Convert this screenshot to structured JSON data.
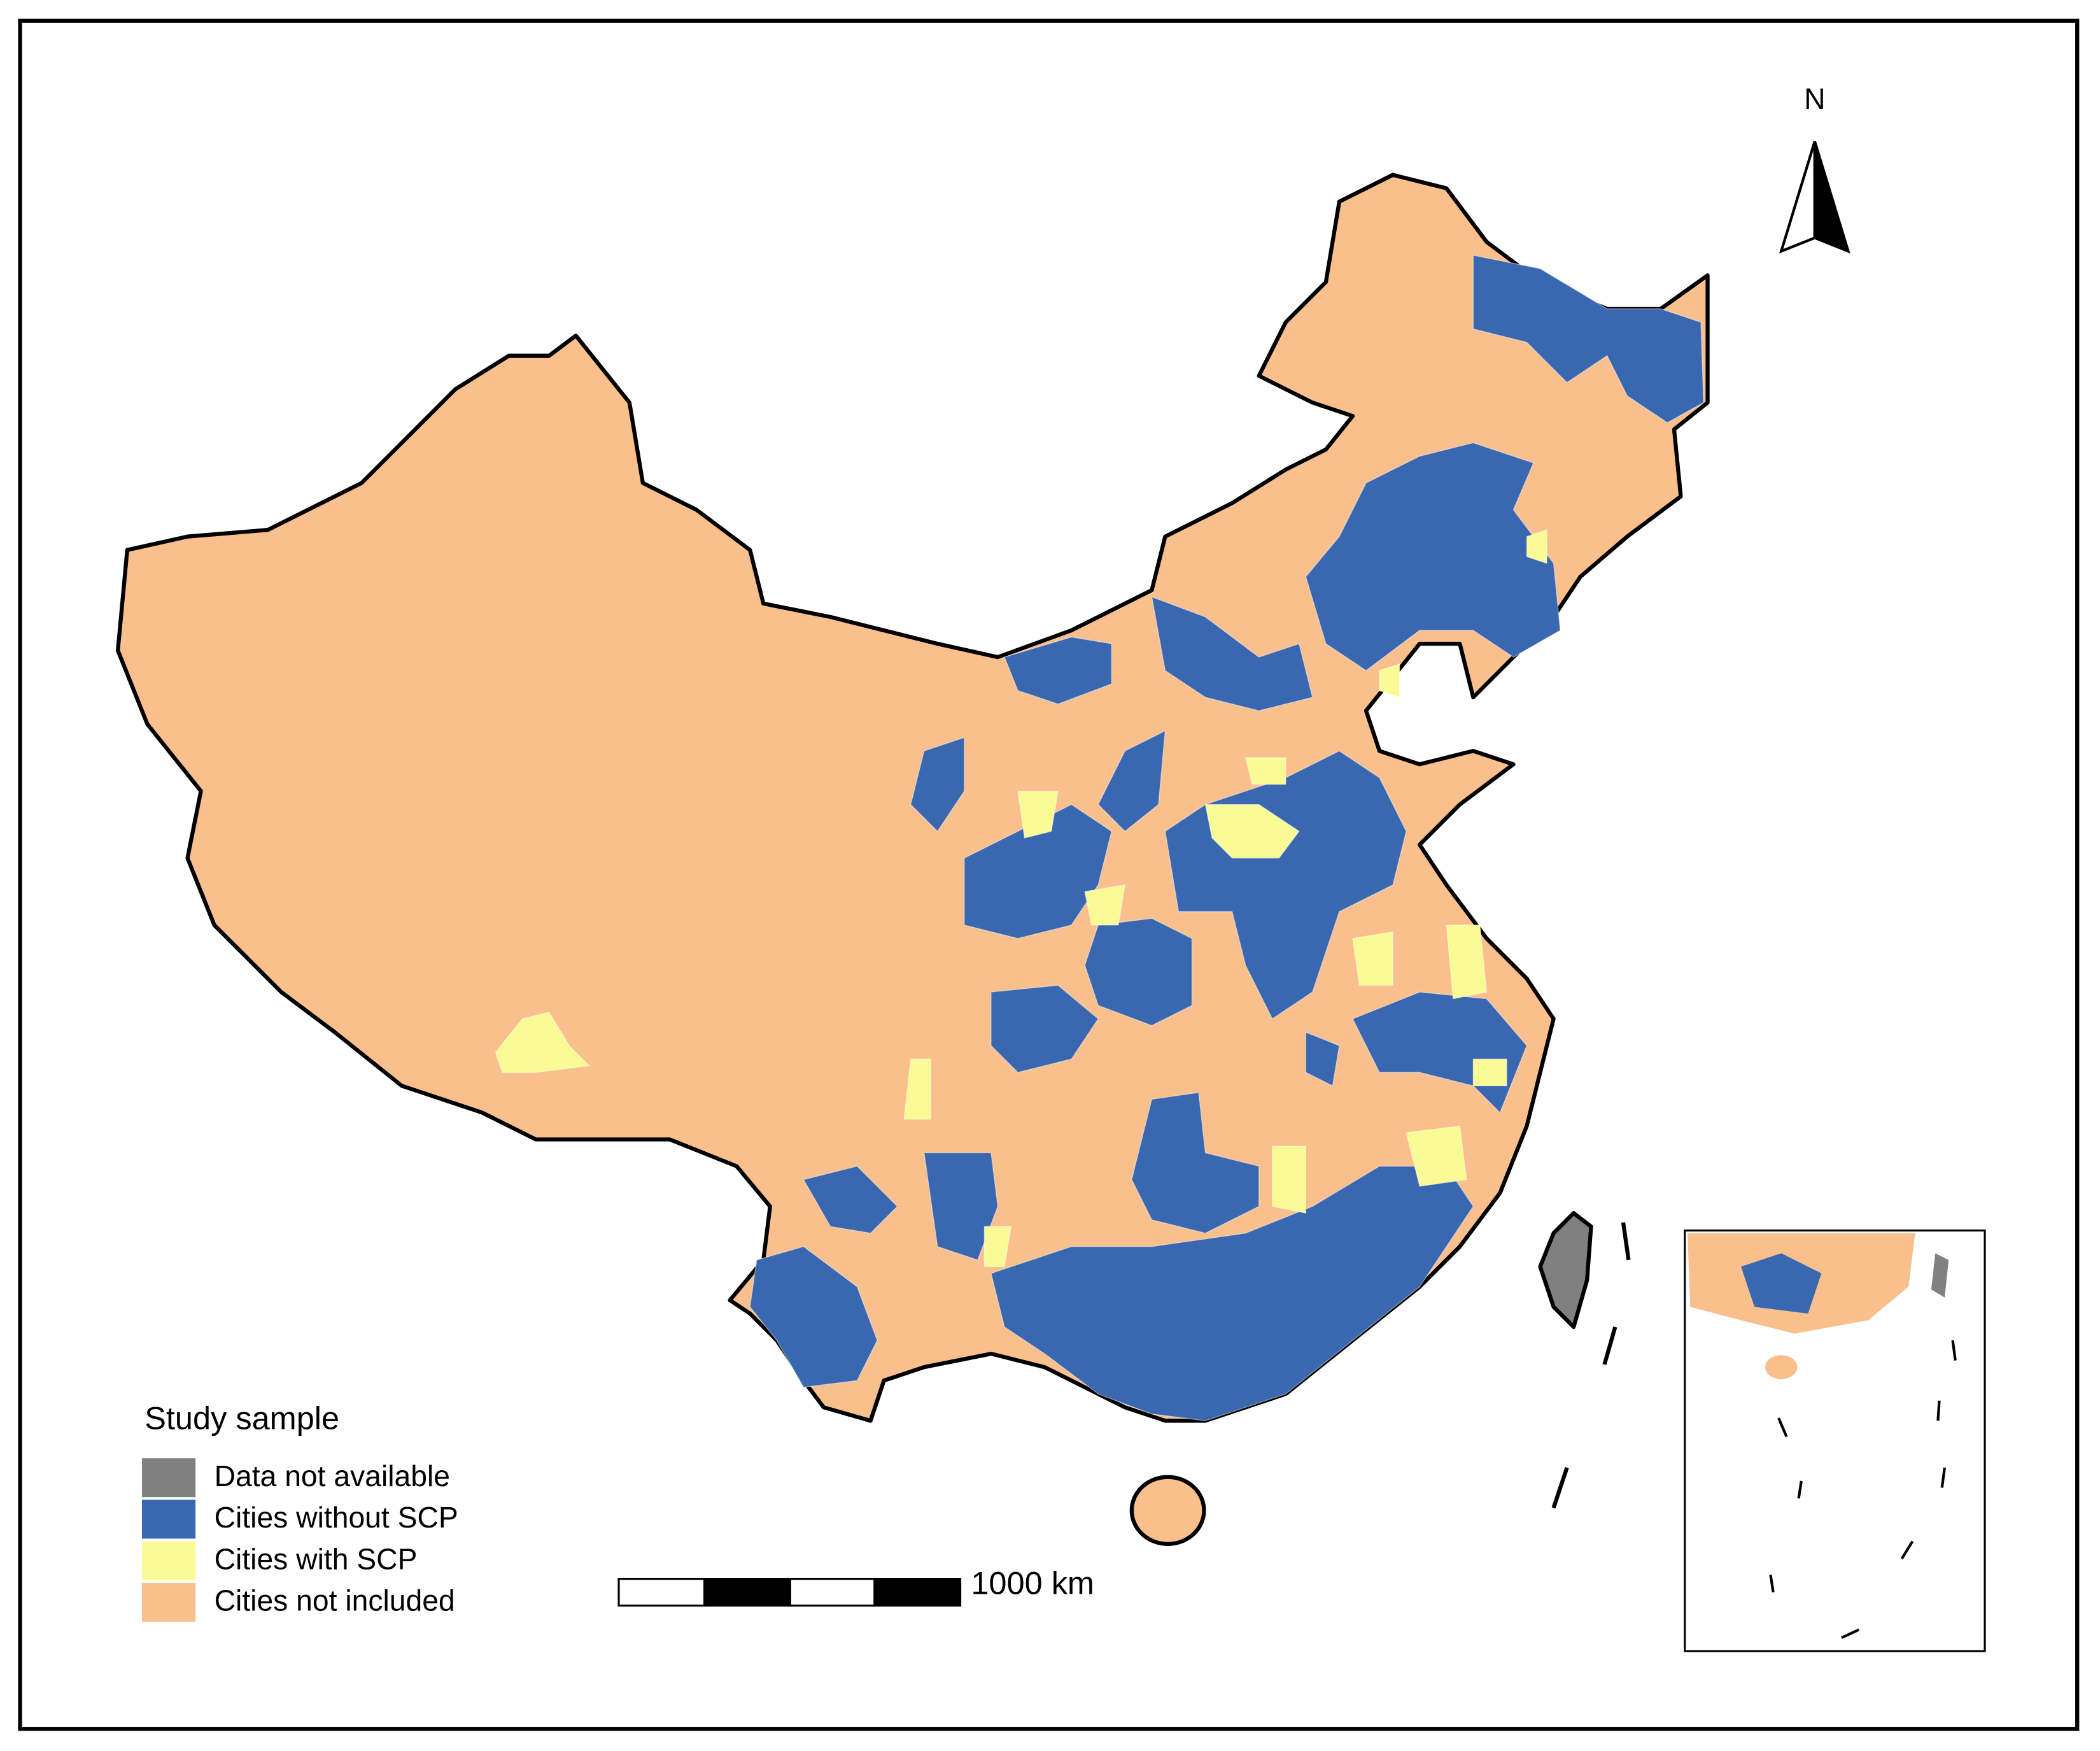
{
  "map": {
    "north_label": "N",
    "legend": {
      "title": "Study sample",
      "items": [
        {
          "label": "Data not available",
          "color": "#808080"
        },
        {
          "label": "Cities without SCP",
          "color": "#3a68b0"
        },
        {
          "label": "Cities with SCP",
          "color": "#fbfb96"
        },
        {
          "label": "Cities not included",
          "color": "#f9c08e"
        }
      ]
    },
    "scale_bar": {
      "label": "1000 km"
    }
  }
}
